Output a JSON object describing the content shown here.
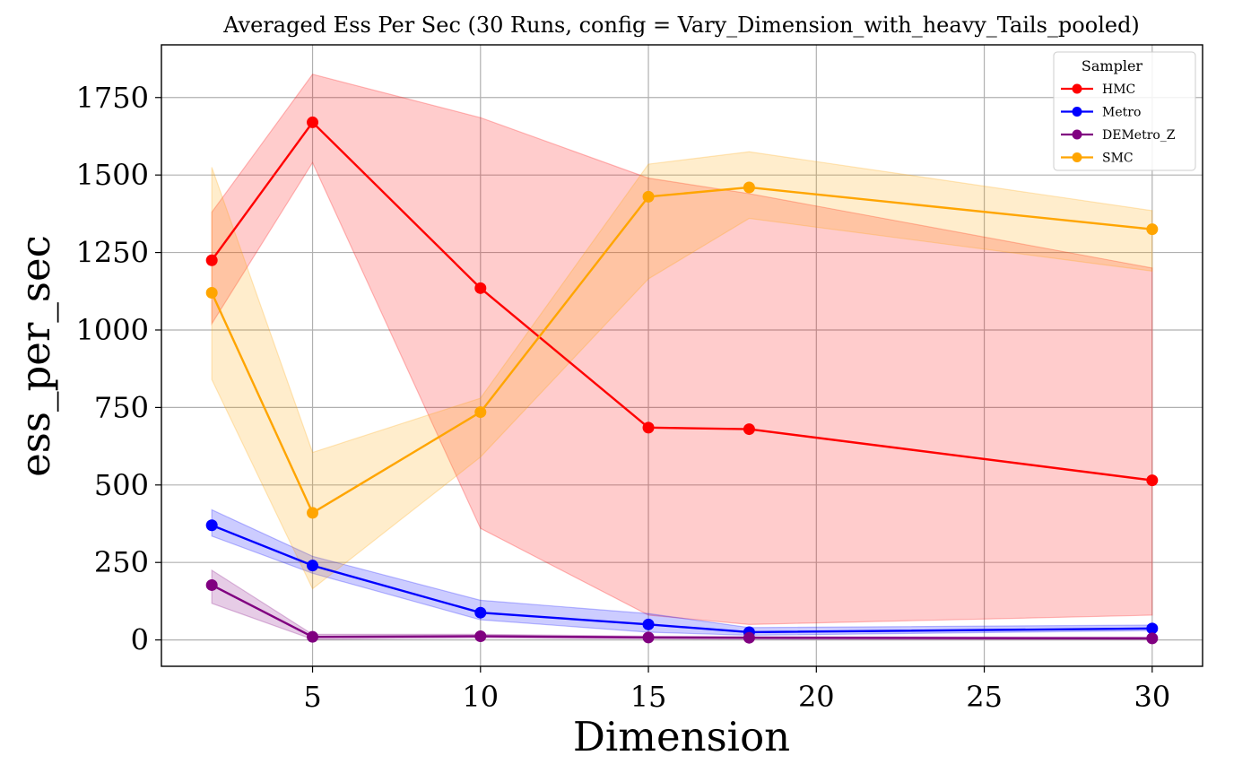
{
  "chart_data": {
    "type": "line",
    "title": "Averaged Ess Per Sec (30 Runs, config = Vary_Dimension_with_heavy_Tails_pooled)",
    "xlabel": "Dimension",
    "ylabel": "ess_per_sec",
    "x": [
      2,
      5,
      10,
      15,
      18,
      30
    ],
    "xlim": [
      0.5,
      31.5
    ],
    "ylim": [
      -85,
      1920
    ],
    "xticks": [
      5,
      10,
      15,
      20,
      25,
      30
    ],
    "yticks": [
      0,
      250,
      500,
      750,
      1000,
      1250,
      1500,
      1750
    ],
    "grid": true,
    "legend_title": "Sampler",
    "legend_position": "top-right",
    "series": [
      {
        "name": "HMC",
        "color": "#ff0000",
        "values": [
          1225,
          1670,
          1135,
          685,
          680,
          515
        ],
        "lower": [
          1020,
          1540,
          360,
          80,
          50,
          80
        ],
        "upper": [
          1380,
          1825,
          1685,
          1490,
          1440,
          1200
        ]
      },
      {
        "name": "Metro",
        "color": "#0000ff",
        "values": [
          370,
          240,
          88,
          50,
          25,
          37
        ],
        "lower": [
          335,
          215,
          65,
          25,
          15,
          30
        ],
        "upper": [
          420,
          270,
          128,
          85,
          40,
          48
        ]
      },
      {
        "name": "DEMetro_Z",
        "color": "#800080",
        "values": [
          177,
          10,
          12,
          8,
          7,
          5
        ],
        "lower": [
          118,
          2,
          7,
          4,
          3,
          2
        ],
        "upper": [
          225,
          18,
          18,
          12,
          11,
          9
        ]
      },
      {
        "name": "SMC",
        "color": "#ffa500",
        "values": [
          1120,
          410,
          735,
          1430,
          1460,
          1325
        ],
        "lower": [
          840,
          165,
          590,
          1165,
          1360,
          1190
        ],
        "upper": [
          1525,
          605,
          780,
          1535,
          1575,
          1385
        ]
      }
    ]
  }
}
